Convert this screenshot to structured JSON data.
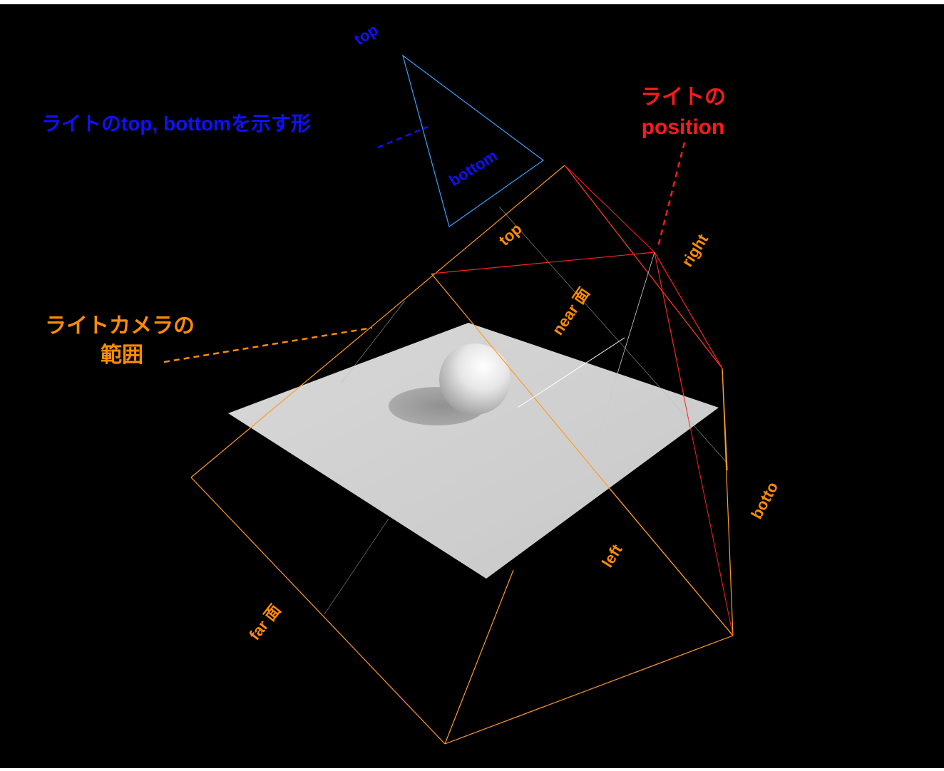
{
  "colors": {
    "blue": "#1010ff",
    "red": "#ff1a1a",
    "orange": "#ff8c00",
    "frustum_line": "#ff9a2a",
    "light_line": "#ff2020",
    "shape_line": "#3aa0ff",
    "plane": "#d0d0d0",
    "background": "#000000"
  },
  "labels": {
    "shape_top": "top",
    "shape_bottom": "bottom",
    "shape_caption": "ライトのtop, bottomを示す形",
    "light_position_line1": "ライトの",
    "light_position_line2": "position",
    "camera_range_line1": "ライトカメラの",
    "camera_range_line2": "範囲",
    "frustum_top": "top",
    "frustum_right": "right",
    "near_plane": "near 面",
    "bottom_cut": "botto",
    "left": "left",
    "far_plane": "far 面"
  }
}
